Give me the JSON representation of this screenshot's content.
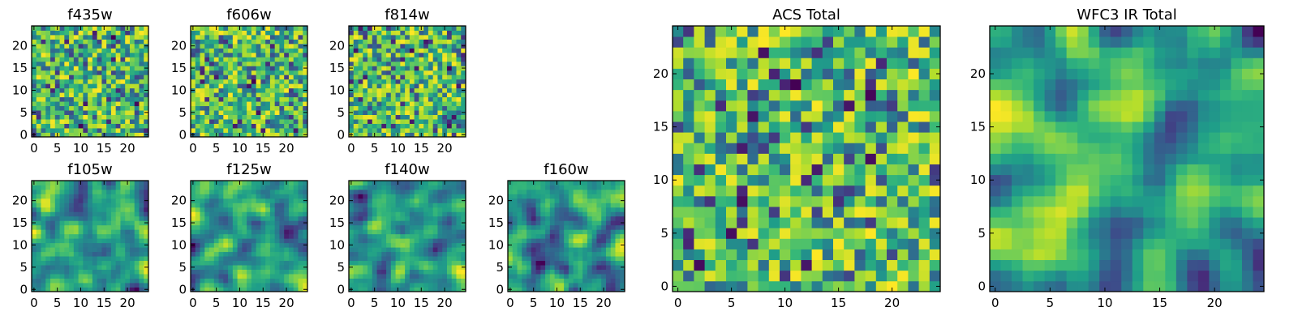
{
  "chart_data": [
    {
      "type": "heatmap",
      "title": "f435w",
      "xticks": [
        0,
        5,
        10,
        15,
        20
      ],
      "yticks": [
        0,
        5,
        10,
        15,
        20
      ],
      "xlim": [
        -0.5,
        24.5
      ],
      "ylim": [
        -0.5,
        24.5
      ],
      "grid_size": [
        25,
        25
      ],
      "colormap": "viridis",
      "texture": "noisy"
    },
    {
      "type": "heatmap",
      "title": "f606w",
      "xticks": [
        0,
        5,
        10,
        15,
        20
      ],
      "yticks": [
        0,
        5,
        10,
        15,
        20
      ],
      "xlim": [
        -0.5,
        24.5
      ],
      "ylim": [
        -0.5,
        24.5
      ],
      "grid_size": [
        25,
        25
      ],
      "colormap": "viridis",
      "texture": "noisy"
    },
    {
      "type": "heatmap",
      "title": "f814w",
      "xticks": [
        0,
        5,
        10,
        15,
        20
      ],
      "yticks": [
        0,
        5,
        10,
        15,
        20
      ],
      "xlim": [
        -0.5,
        24.5
      ],
      "ylim": [
        -0.5,
        24.5
      ],
      "grid_size": [
        25,
        25
      ],
      "colormap": "viridis",
      "texture": "noisy"
    },
    {
      "type": "heatmap",
      "title": "f105w",
      "xticks": [
        0,
        5,
        10,
        15,
        20
      ],
      "yticks": [
        0,
        5,
        10,
        15,
        20
      ],
      "xlim": [
        -0.5,
        24.5
      ],
      "ylim": [
        -0.5,
        24.5
      ],
      "grid_size": [
        25,
        25
      ],
      "colormap": "viridis",
      "texture": "smooth"
    },
    {
      "type": "heatmap",
      "title": "f125w",
      "xticks": [
        0,
        5,
        10,
        15,
        20
      ],
      "yticks": [
        0,
        5,
        10,
        15,
        20
      ],
      "xlim": [
        -0.5,
        24.5
      ],
      "ylim": [
        -0.5,
        24.5
      ],
      "grid_size": [
        25,
        25
      ],
      "colormap": "viridis",
      "texture": "smooth"
    },
    {
      "type": "heatmap",
      "title": "f140w",
      "xticks": [
        0,
        5,
        10,
        15,
        20
      ],
      "yticks": [
        0,
        5,
        10,
        15,
        20
      ],
      "xlim": [
        -0.5,
        24.5
      ],
      "ylim": [
        -0.5,
        24.5
      ],
      "grid_size": [
        25,
        25
      ],
      "colormap": "viridis",
      "texture": "smooth"
    },
    {
      "type": "heatmap",
      "title": "f160w",
      "xticks": [
        0,
        5,
        10,
        15,
        20
      ],
      "yticks": [
        0,
        5,
        10,
        15,
        20
      ],
      "xlim": [
        -0.5,
        24.5
      ],
      "ylim": [
        -0.5,
        24.5
      ],
      "grid_size": [
        25,
        25
      ],
      "colormap": "viridis",
      "texture": "smooth"
    },
    {
      "type": "heatmap",
      "title": "ACS Total",
      "xticks": [
        0,
        5,
        10,
        15,
        20
      ],
      "yticks": [
        0,
        5,
        10,
        15,
        20
      ],
      "xlim": [
        -0.5,
        24.5
      ],
      "ylim": [
        -0.5,
        24.5
      ],
      "grid_size": [
        25,
        25
      ],
      "colormap": "viridis",
      "texture": "noisy"
    },
    {
      "type": "heatmap",
      "title": "WFC3 IR Total",
      "xticks": [
        0,
        5,
        10,
        15,
        20
      ],
      "yticks": [
        0,
        5,
        10,
        15,
        20
      ],
      "xlim": [
        -0.5,
        24.5
      ],
      "ylim": [
        -0.5,
        24.5
      ],
      "grid_size": [
        25,
        25
      ],
      "colormap": "viridis",
      "texture": "smooth"
    }
  ]
}
